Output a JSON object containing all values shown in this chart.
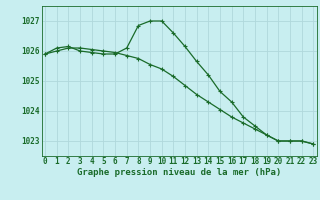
{
  "title": "Graphe pression niveau de la mer (hPa)",
  "bg_color": "#c8eef0",
  "grid_color": "#b0d8db",
  "line_color": "#1a6b2a",
  "ylim": [
    1022.5,
    1027.5
  ],
  "yticks": [
    1023,
    1024,
    1025,
    1026,
    1027
  ],
  "xlim": [
    -0.3,
    23.3
  ],
  "xticks": [
    0,
    1,
    2,
    3,
    4,
    5,
    6,
    7,
    8,
    9,
    10,
    11,
    12,
    13,
    14,
    15,
    16,
    17,
    18,
    19,
    20,
    21,
    22,
    23
  ],
  "series1_x": [
    0,
    1,
    2,
    3,
    4,
    5,
    6,
    7,
    8,
    9,
    10,
    11,
    12,
    13,
    14,
    15,
    16,
    17,
    18,
    19,
    20,
    21,
    22,
    23
  ],
  "series1_y": [
    1025.9,
    1026.1,
    1026.15,
    1026.0,
    1025.95,
    1025.9,
    1025.9,
    1026.1,
    1026.85,
    1027.0,
    1027.0,
    1026.6,
    1026.15,
    1025.65,
    1025.2,
    1024.65,
    1024.3,
    1023.8,
    1023.5,
    1023.2,
    1023.0,
    1023.0,
    1023.0,
    1022.9
  ],
  "series2_x": [
    0,
    1,
    2,
    3,
    4,
    5,
    6,
    7,
    8,
    9,
    10,
    11,
    12,
    13,
    14,
    15,
    16,
    17,
    18,
    19,
    20,
    21,
    22,
    23
  ],
  "series2_y": [
    1025.9,
    1026.0,
    1026.1,
    1026.1,
    1026.05,
    1026.0,
    1025.95,
    1025.85,
    1025.75,
    1025.55,
    1025.4,
    1025.15,
    1024.85,
    1024.55,
    1024.3,
    1024.05,
    1023.8,
    1023.6,
    1023.4,
    1023.2,
    1023.0,
    1023.0,
    1023.0,
    1022.9
  ],
  "tick_fontsize": 5.5,
  "title_fontsize": 6.5
}
